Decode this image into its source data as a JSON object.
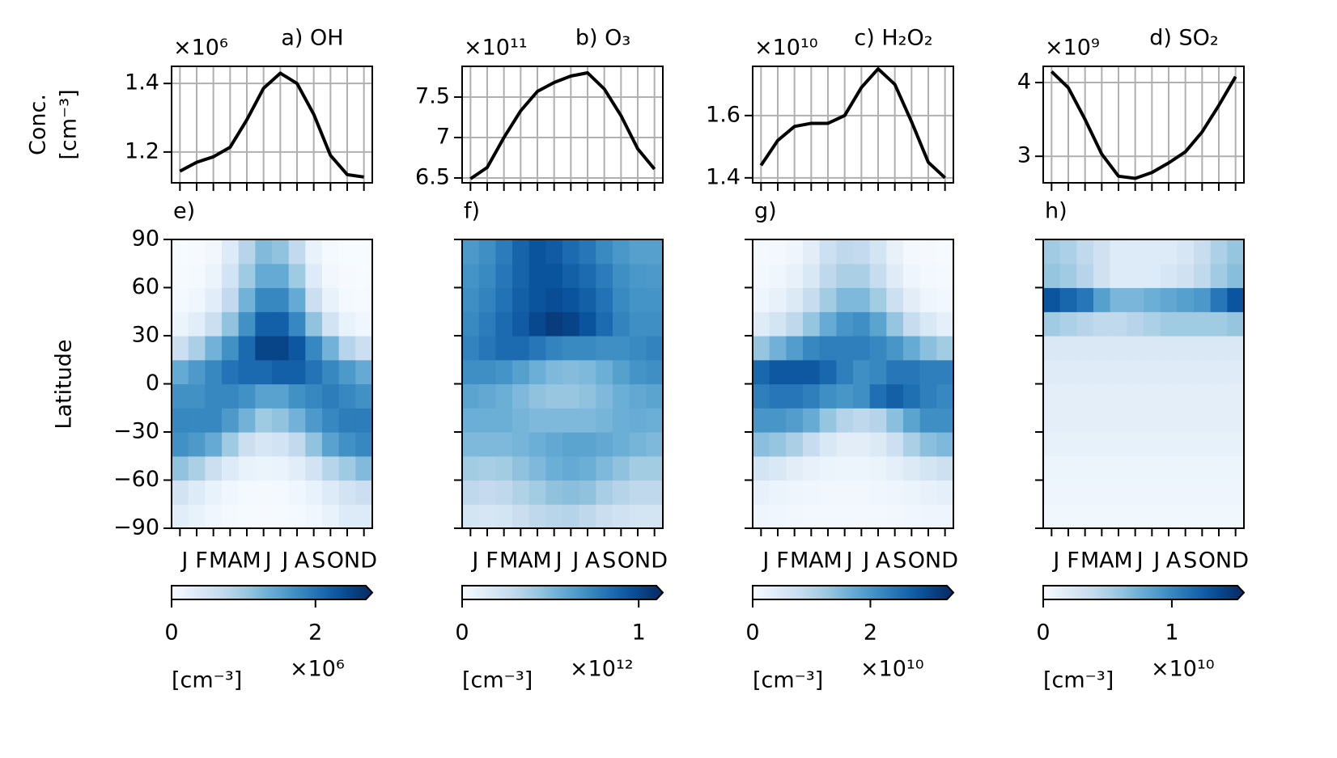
{
  "chart_data": [
    {
      "type": "line",
      "title": "a) OH",
      "offset_label": "×10⁶",
      "ylabel": [
        "Conc.",
        "[cm⁻³]"
      ],
      "color": "#000000",
      "grid": true,
      "values": [
        1.144,
        1.17,
        1.186,
        1.214,
        1.294,
        1.386,
        1.43,
        1.4,
        1.31,
        1.19,
        1.134,
        1.127
      ],
      "ylim": [
        1.11,
        1.45
      ],
      "yticks": [
        1.2,
        1.4
      ]
    },
    {
      "type": "line",
      "title": "b) O₃",
      "offset_label": "×10¹¹",
      "color": "#000000",
      "grid": true,
      "values": [
        6.49,
        6.63,
        7.0,
        7.33,
        7.57,
        7.68,
        7.76,
        7.8,
        7.6,
        7.27,
        6.86,
        6.61
      ],
      "ylim": [
        6.44,
        7.88
      ],
      "yticks": [
        6.5,
        7.0,
        7.5
      ]
    },
    {
      "type": "line",
      "title": "c) H₂O₂",
      "offset_label": "×10¹⁰",
      "color": "#000000",
      "grid": true,
      "values": [
        1.44,
        1.52,
        1.565,
        1.575,
        1.575,
        1.6,
        1.69,
        1.75,
        1.7,
        1.58,
        1.45,
        1.4
      ],
      "ylim": [
        1.384,
        1.758
      ],
      "yticks": [
        1.4,
        1.6
      ]
    },
    {
      "type": "line",
      "title": "d) SO₂",
      "offset_label": "×10⁹",
      "color": "#000000",
      "grid": true,
      "values": [
        4.15,
        3.93,
        3.5,
        3.03,
        2.73,
        2.7,
        2.78,
        2.91,
        3.06,
        3.33,
        3.69,
        4.08
      ],
      "ylim": [
        2.64,
        4.22
      ],
      "yticks": [
        3,
        4
      ]
    },
    {
      "type": "heatmap",
      "label": "e)",
      "ylabel": "Latitude",
      "show_ytick_labels": true,
      "categories": [
        "J",
        "F",
        "M",
        "A",
        "M",
        "J",
        "J",
        "A",
        "S",
        "O",
        "N",
        "D"
      ],
      "y": [
        -82.5,
        -67.5,
        -52.5,
        -37.5,
        -22.5,
        -7.5,
        7.5,
        22.5,
        37.5,
        52.5,
        67.5,
        82.5
      ],
      "ylim": [
        -90,
        90
      ],
      "yticks": [
        90,
        60,
        30,
        0,
        {
          "value": -30,
          "label": "−30"
        },
        {
          "value": -60,
          "label": "−60"
        },
        {
          "value": -90,
          "label": "−90"
        }
      ],
      "z": [
        [
          0.3,
          0.2,
          0.1,
          0.05,
          0.03,
          0.02,
          0.03,
          0.05,
          0.1,
          0.2,
          0.35,
          0.35
        ],
        [
          0.5,
          0.35,
          0.2,
          0.1,
          0.05,
          0.04,
          0.05,
          0.1,
          0.2,
          0.35,
          0.5,
          0.6
        ],
        [
          1.1,
          0.9,
          0.6,
          0.35,
          0.2,
          0.15,
          0.17,
          0.3,
          0.5,
          0.8,
          1.0,
          1.2
        ],
        [
          1.7,
          1.6,
          1.4,
          1.0,
          0.6,
          0.45,
          0.5,
          0.7,
          1.1,
          1.5,
          1.7,
          1.8
        ],
        [
          1.8,
          1.8,
          1.8,
          1.6,
          1.3,
          1.0,
          1.1,
          1.3,
          1.6,
          1.8,
          1.9,
          1.9
        ],
        [
          1.7,
          1.7,
          1.8,
          1.8,
          1.7,
          1.5,
          1.5,
          1.7,
          1.8,
          1.9,
          1.8,
          1.7
        ],
        [
          1.4,
          1.6,
          1.8,
          2.0,
          2.1,
          2.1,
          2.2,
          2.2,
          2.0,
          1.8,
          1.6,
          1.4
        ],
        [
          0.6,
          0.9,
          1.3,
          1.7,
          2.1,
          2.5,
          2.5,
          2.3,
          1.8,
          1.3,
          0.8,
          0.6
        ],
        [
          0.15,
          0.3,
          0.6,
          1.1,
          1.7,
          2.2,
          2.2,
          1.8,
          1.1,
          0.5,
          0.2,
          0.1
        ],
        [
          0.05,
          0.1,
          0.3,
          0.7,
          1.3,
          1.8,
          1.8,
          1.4,
          0.6,
          0.2,
          0.05,
          0.03
        ],
        [
          0.02,
          0.05,
          0.15,
          0.5,
          1.0,
          1.4,
          1.4,
          1.0,
          0.35,
          0.08,
          0.02,
          0.01
        ],
        [
          0.01,
          0.02,
          0.08,
          0.35,
          0.8,
          1.2,
          1.1,
          0.7,
          0.2,
          0.04,
          0.01,
          0.01
        ]
      ],
      "colorbar": {
        "colormap": "Blues",
        "extend": "max",
        "lim": [
          0,
          2.7
        ],
        "ticks": [
          0,
          2
        ],
        "label": "[cm⁻³]",
        "offset_label": "×10⁶"
      }
    },
    {
      "type": "heatmap",
      "label": "f)",
      "show_ytick_labels": false,
      "categories": [
        "J",
        "F",
        "M",
        "A",
        "M",
        "J",
        "J",
        "A",
        "S",
        "O",
        "N",
        "D"
      ],
      "y": [
        -82.5,
        -67.5,
        -52.5,
        -37.5,
        -22.5,
        -7.5,
        7.5,
        22.5,
        37.5,
        52.5,
        67.5,
        82.5
      ],
      "ylim": [
        -90,
        90
      ],
      "yticks": [
        90,
        60,
        30,
        0,
        -30,
        -60,
        -90
      ],
      "z": [
        [
          0.2,
          0.18,
          0.2,
          0.25,
          0.3,
          0.32,
          0.33,
          0.3,
          0.25,
          0.22,
          0.2,
          0.2
        ],
        [
          0.3,
          0.28,
          0.3,
          0.35,
          0.4,
          0.45,
          0.47,
          0.45,
          0.38,
          0.33,
          0.3,
          0.3
        ],
        [
          0.4,
          0.38,
          0.4,
          0.45,
          0.5,
          0.55,
          0.57,
          0.55,
          0.5,
          0.45,
          0.4,
          0.4
        ],
        [
          0.5,
          0.5,
          0.5,
          0.52,
          0.55,
          0.58,
          0.6,
          0.6,
          0.58,
          0.55,
          0.52,
          0.5
        ],
        [
          0.55,
          0.55,
          0.55,
          0.52,
          0.5,
          0.5,
          0.5,
          0.5,
          0.52,
          0.55,
          0.56,
          0.55
        ],
        [
          0.6,
          0.58,
          0.55,
          0.5,
          0.45,
          0.43,
          0.43,
          0.45,
          0.5,
          0.55,
          0.58,
          0.6
        ],
        [
          0.7,
          0.7,
          0.68,
          0.62,
          0.55,
          0.5,
          0.48,
          0.5,
          0.55,
          0.62,
          0.68,
          0.7
        ],
        [
          0.75,
          0.8,
          0.85,
          0.85,
          0.8,
          0.75,
          0.72,
          0.72,
          0.7,
          0.7,
          0.72,
          0.75
        ],
        [
          0.72,
          0.78,
          0.85,
          0.92,
          1.0,
          1.05,
          1.02,
          0.95,
          0.85,
          0.75,
          0.7,
          0.7
        ],
        [
          0.7,
          0.75,
          0.82,
          0.9,
          0.95,
          0.98,
          0.95,
          0.9,
          0.82,
          0.72,
          0.68,
          0.68
        ],
        [
          0.68,
          0.72,
          0.8,
          0.88,
          0.95,
          0.95,
          0.9,
          0.85,
          0.78,
          0.7,
          0.66,
          0.65
        ],
        [
          0.65,
          0.7,
          0.78,
          0.88,
          0.95,
          0.92,
          0.85,
          0.8,
          0.72,
          0.66,
          0.62,
          0.62
        ]
      ],
      "colorbar": {
        "colormap": "Blues",
        "extend": "max",
        "lim": [
          0,
          1.1
        ],
        "ticks": [
          0,
          1
        ],
        "label": "[cm⁻³]",
        "offset_label": "×10¹²"
      }
    },
    {
      "type": "heatmap",
      "label": "g)",
      "show_ytick_labels": false,
      "categories": [
        "J",
        "F",
        "M",
        "A",
        "M",
        "J",
        "J",
        "A",
        "S",
        "O",
        "N",
        "D"
      ],
      "y": [
        -82.5,
        -67.5,
        -52.5,
        -37.5,
        -22.5,
        -7.5,
        7.5,
        22.5,
        37.5,
        52.5,
        67.5,
        82.5
      ],
      "ylim": [
        -90,
        90
      ],
      "yticks": [
        90,
        60,
        30,
        0,
        -30,
        -60,
        -90
      ],
      "z": [
        [
          0.15,
          0.12,
          0.1,
          0.08,
          0.07,
          0.07,
          0.07,
          0.08,
          0.1,
          0.12,
          0.15,
          0.15
        ],
        [
          0.25,
          0.2,
          0.15,
          0.12,
          0.1,
          0.1,
          0.1,
          0.12,
          0.15,
          0.2,
          0.25,
          0.3
        ],
        [
          0.6,
          0.5,
          0.35,
          0.25,
          0.2,
          0.18,
          0.18,
          0.2,
          0.3,
          0.45,
          0.6,
          0.7
        ],
        [
          1.4,
          1.3,
          1.1,
          0.8,
          0.5,
          0.35,
          0.35,
          0.45,
          0.7,
          1.1,
          1.4,
          1.5
        ],
        [
          2.0,
          2.0,
          1.9,
          1.7,
          1.3,
          1.0,
          0.9,
          1.0,
          1.4,
          1.8,
          2.1,
          2.1
        ],
        [
          2.3,
          2.4,
          2.4,
          2.3,
          2.1,
          2.0,
          2.1,
          2.5,
          2.7,
          2.5,
          2.3,
          2.2
        ],
        [
          2.6,
          2.8,
          2.8,
          2.8,
          2.6,
          2.3,
          2.1,
          2.2,
          2.4,
          2.4,
          2.3,
          2.3
        ],
        [
          1.3,
          1.6,
          1.9,
          2.2,
          2.3,
          2.3,
          2.3,
          2.2,
          2.0,
          1.7,
          1.4,
          1.2
        ],
        [
          0.4,
          0.6,
          0.9,
          1.3,
          1.7,
          2.0,
          2.1,
          1.8,
          1.3,
          0.8,
          0.5,
          0.3
        ],
        [
          0.15,
          0.25,
          0.45,
          0.8,
          1.2,
          1.5,
          1.5,
          1.2,
          0.7,
          0.35,
          0.15,
          0.1
        ],
        [
          0.08,
          0.12,
          0.25,
          0.5,
          0.9,
          1.1,
          1.1,
          0.8,
          0.4,
          0.15,
          0.07,
          0.05
        ],
        [
          0.05,
          0.08,
          0.15,
          0.35,
          0.7,
          0.9,
          0.85,
          0.6,
          0.25,
          0.08,
          0.04,
          0.03
        ]
      ],
      "colorbar": {
        "colormap": "Blues",
        "extend": "max",
        "lim": [
          0,
          3.3
        ],
        "ticks": [
          0,
          2
        ],
        "label": "[cm⁻³]",
        "offset_label": "×10¹⁰"
      }
    },
    {
      "type": "heatmap",
      "label": "h)",
      "show_ytick_labels": false,
      "categories": [
        "J",
        "F",
        "M",
        "A",
        "M",
        "J",
        "J",
        "A",
        "S",
        "O",
        "N",
        "D"
      ],
      "y": [
        -82.5,
        -67.5,
        -52.5,
        -37.5,
        -22.5,
        -7.5,
        7.5,
        22.5,
        37.5,
        52.5,
        67.5,
        82.5
      ],
      "ylim": [
        -90,
        90
      ],
      "yticks": [
        90,
        60,
        30,
        0,
        -30,
        -60,
        -90
      ],
      "z": [
        [
          0.05,
          0.05,
          0.05,
          0.05,
          0.05,
          0.05,
          0.05,
          0.05,
          0.05,
          0.05,
          0.05,
          0.05
        ],
        [
          0.07,
          0.07,
          0.07,
          0.07,
          0.07,
          0.07,
          0.07,
          0.07,
          0.07,
          0.07,
          0.07,
          0.07
        ],
        [
          0.08,
          0.08,
          0.08,
          0.08,
          0.08,
          0.08,
          0.08,
          0.08,
          0.08,
          0.08,
          0.08,
          0.08
        ],
        [
          0.12,
          0.12,
          0.12,
          0.12,
          0.12,
          0.12,
          0.12,
          0.12,
          0.12,
          0.12,
          0.12,
          0.12
        ],
        [
          0.15,
          0.15,
          0.15,
          0.15,
          0.15,
          0.15,
          0.15,
          0.15,
          0.15,
          0.15,
          0.15,
          0.15
        ],
        [
          0.15,
          0.15,
          0.15,
          0.15,
          0.15,
          0.15,
          0.15,
          0.15,
          0.15,
          0.15,
          0.15,
          0.15
        ],
        [
          0.18,
          0.18,
          0.18,
          0.18,
          0.18,
          0.18,
          0.18,
          0.18,
          0.18,
          0.18,
          0.18,
          0.18
        ],
        [
          0.22,
          0.22,
          0.22,
          0.22,
          0.22,
          0.22,
          0.22,
          0.22,
          0.22,
          0.22,
          0.22,
          0.22
        ],
        [
          0.55,
          0.5,
          0.45,
          0.4,
          0.4,
          0.45,
          0.5,
          0.55,
          0.55,
          0.55,
          0.55,
          0.6
        ],
        [
          1.3,
          1.2,
          1.1,
          0.85,
          0.7,
          0.7,
          0.75,
          0.8,
          0.85,
          0.9,
          1.1,
          1.3
        ],
        [
          0.6,
          0.55,
          0.45,
          0.3,
          0.2,
          0.2,
          0.2,
          0.25,
          0.3,
          0.4,
          0.55,
          0.65
        ],
        [
          0.55,
          0.5,
          0.4,
          0.3,
          0.2,
          0.2,
          0.2,
          0.2,
          0.25,
          0.35,
          0.5,
          0.6
        ]
      ],
      "colorbar": {
        "colormap": "Blues",
        "extend": "max",
        "lim": [
          0,
          1.51
        ],
        "ticks": [
          0,
          1
        ],
        "label": "[cm⁻³]",
        "offset_label": "×10¹⁰"
      }
    }
  ]
}
